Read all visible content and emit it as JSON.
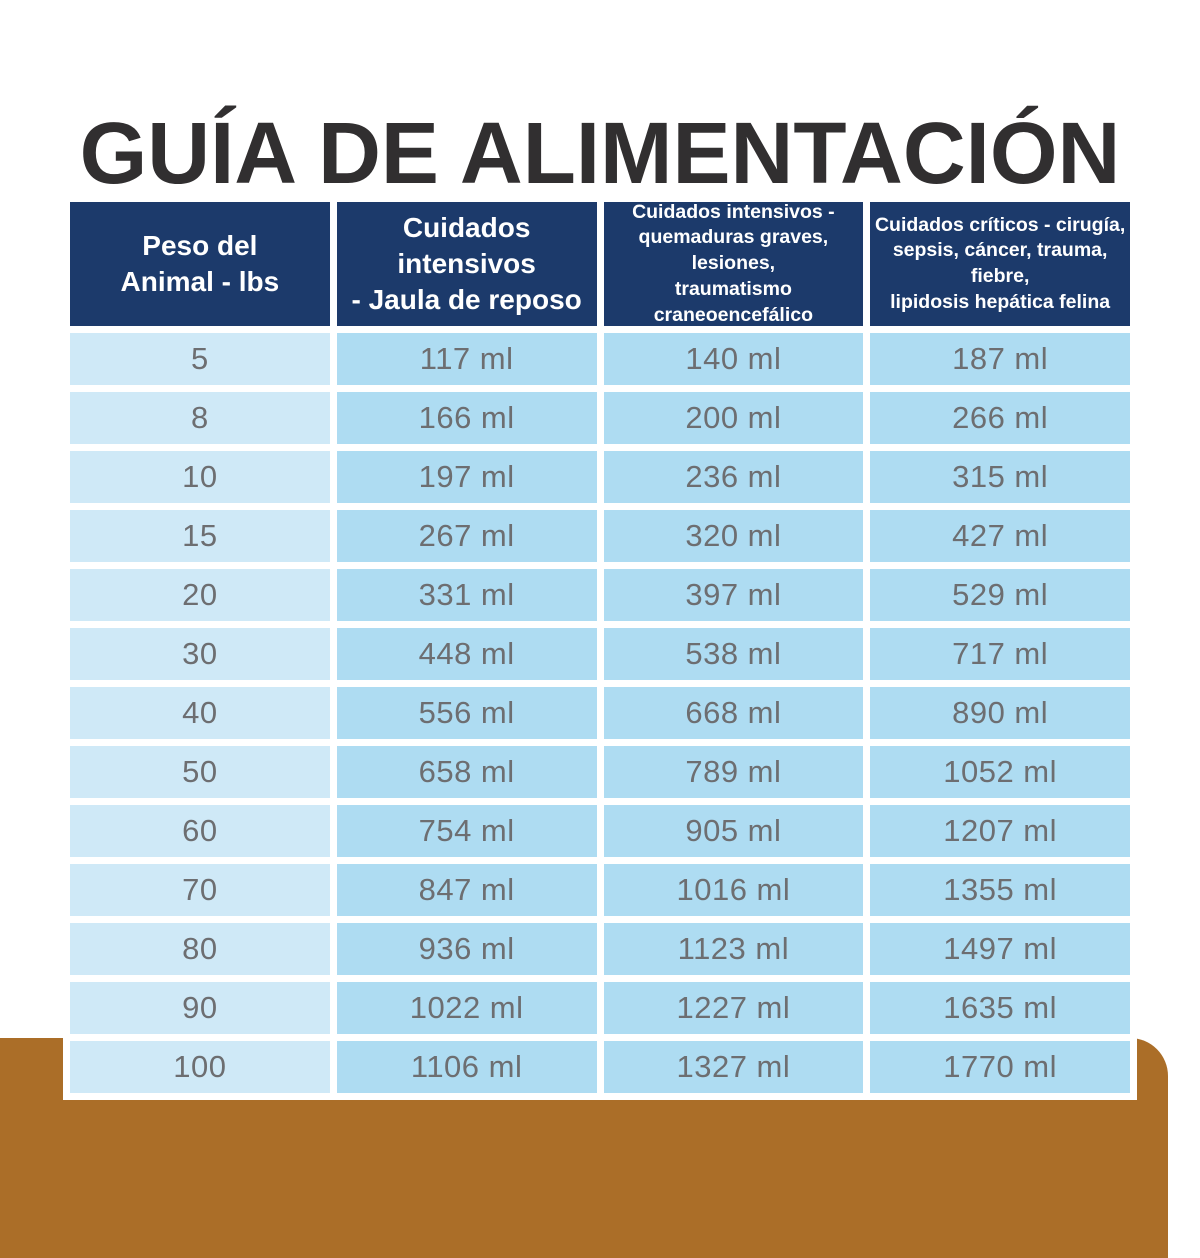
{
  "title": "GUÍA DE ALIMENTACIÓN",
  "colors": {
    "header_bg": "#1c3a6b",
    "header_text": "#ffffff",
    "weight_cell_bg": "#cfe9f7",
    "value_cell_bg": "#aedcf2",
    "cell_text": "#6d6e71",
    "brown_band": "#ab6e28",
    "title_text": "#312f30",
    "page_bg": "#ffffff"
  },
  "table": {
    "headers": [
      {
        "label": "Peso del\nAnimal - lbs"
      },
      {
        "label": "Cuidados intensivos\n- Jaula de reposo"
      },
      {
        "label": "Cuidados intensivos -\nquemaduras graves, lesiones,\ntraumatismo craneoencefálico"
      },
      {
        "label": "Cuidados críticos - cirugía,\nsepsis, cáncer, trauma, fiebre,\nlipidosis hepática felina"
      }
    ],
    "rows": [
      {
        "weight": "5",
        "values": [
          "117 ml",
          "140 ml",
          "187 ml"
        ]
      },
      {
        "weight": "8",
        "values": [
          "166 ml",
          "200 ml",
          "266 ml"
        ]
      },
      {
        "weight": "10",
        "values": [
          "197 ml",
          "236 ml",
          "315 ml"
        ]
      },
      {
        "weight": "15",
        "values": [
          "267 ml",
          "320 ml",
          "427 ml"
        ]
      },
      {
        "weight": "20",
        "values": [
          "331 ml",
          "397 ml",
          "529 ml"
        ]
      },
      {
        "weight": "30",
        "values": [
          "448 ml",
          "538 ml",
          "717 ml"
        ]
      },
      {
        "weight": "40",
        "values": [
          "556 ml",
          "668 ml",
          "890 ml"
        ]
      },
      {
        "weight": "50",
        "values": [
          "658 ml",
          "789 ml",
          "1052 ml"
        ]
      },
      {
        "weight": "60",
        "values": [
          "754 ml",
          "905 ml",
          "1207 ml"
        ]
      },
      {
        "weight": "70",
        "values": [
          "847 ml",
          "1016 ml",
          "1355 ml"
        ]
      },
      {
        "weight": "80",
        "values": [
          "936 ml",
          "1123 ml",
          "1497 ml"
        ]
      },
      {
        "weight": "90",
        "values": [
          "1022 ml",
          "1227 ml",
          "1635 ml"
        ]
      },
      {
        "weight": "100",
        "values": [
          "1106 ml",
          "1327 ml",
          "1770 ml"
        ]
      }
    ]
  },
  "chart_data": {
    "type": "table",
    "title": "GUÍA DE ALIMENTACIÓN",
    "columns": [
      "Peso del Animal - lbs",
      "Cuidados intensivos - Jaula de reposo",
      "Cuidados intensivos - quemaduras graves, lesiones, traumatismo craneoencefálico",
      "Cuidados críticos - cirugía, sepsis, cáncer, trauma, fiebre, lipidosis hepática felina"
    ],
    "unit": "ml",
    "rows": [
      [
        5,
        117,
        140,
        187
      ],
      [
        8,
        166,
        200,
        266
      ],
      [
        10,
        197,
        236,
        315
      ],
      [
        15,
        267,
        320,
        427
      ],
      [
        20,
        331,
        397,
        529
      ],
      [
        30,
        448,
        538,
        717
      ],
      [
        40,
        556,
        668,
        890
      ],
      [
        50,
        658,
        789,
        1052
      ],
      [
        60,
        754,
        905,
        1207
      ],
      [
        70,
        847,
        1016,
        1355
      ],
      [
        80,
        936,
        1123,
        1497
      ],
      [
        90,
        1022,
        1227,
        1635
      ],
      [
        100,
        1106,
        1327,
        1770
      ]
    ]
  }
}
